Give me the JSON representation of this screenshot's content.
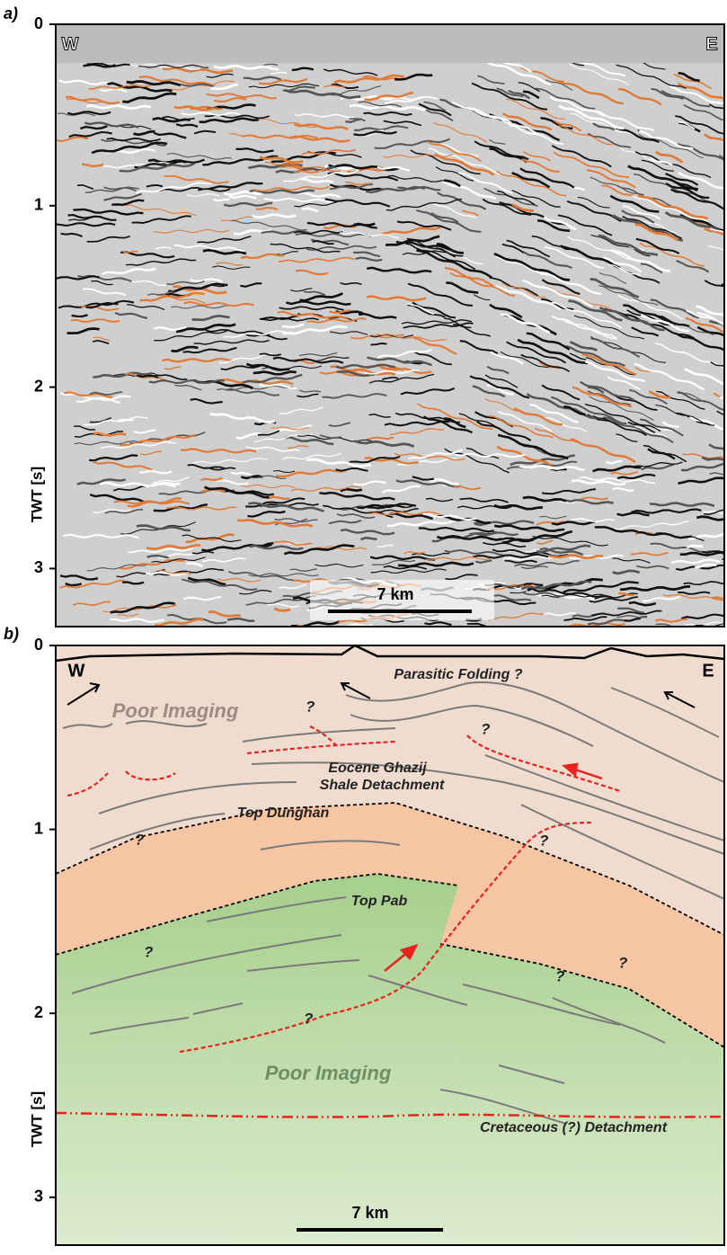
{
  "panel_a": {
    "label": "a)",
    "y_axis": {
      "label": "TWT [s]",
      "ylim": [
        0,
        3.32
      ],
      "ticks": [
        0,
        1,
        2,
        3
      ]
    },
    "west": "W",
    "east": "E",
    "scale_bar": "7 km"
  },
  "panel_b": {
    "label": "b)",
    "y_axis": {
      "label": "TWT [s]",
      "ylim": [
        0,
        3.26
      ],
      "ticks": [
        0,
        1,
        2,
        3
      ]
    },
    "west": "W",
    "east": "E",
    "scale_bar": "7 km",
    "annotations": {
      "parasitic": "Parasitic Folding ?",
      "poor_top": "Poor Imaging",
      "eocene_1": "Eocene Ghazij",
      "eocene_2": "Shale Detachment",
      "dunghan": "Top Dunghan",
      "pab": "Top Pab",
      "poor_bottom": "Poor Imaging",
      "cretaceous": "Cretaceous (?) Detachment"
    },
    "question_marks": [
      "?",
      "?",
      "?",
      "?",
      "?",
      "?",
      "?",
      "?"
    ]
  }
}
